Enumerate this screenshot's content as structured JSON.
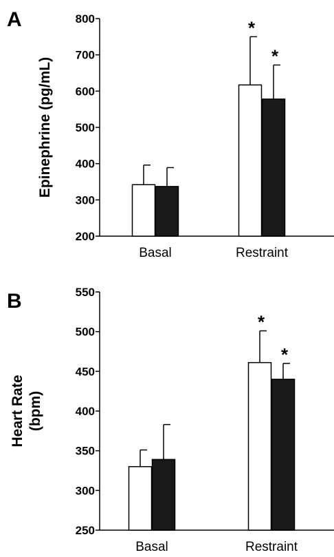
{
  "chart_data": [
    {
      "type": "bar",
      "panel": "A",
      "categories": [
        "Basal",
        "Restraint"
      ],
      "series": [
        {
          "values": [
            342,
            617
          ],
          "errors": [
            54,
            133
          ],
          "color": "#ffffff"
        },
        {
          "values": [
            337,
            578
          ],
          "errors": [
            52,
            94
          ],
          "color": "#1a1a1a"
        }
      ],
      "ylabel": "Epinephrine  (pg/mL)",
      "ylim": [
        200,
        800
      ],
      "yticks": [
        200,
        300,
        400,
        500,
        600,
        700,
        800
      ],
      "annotations": [
        {
          "category": "Restraint",
          "series": 0,
          "text": "*"
        },
        {
          "category": "Restraint",
          "series": 1,
          "text": "*"
        }
      ],
      "grid": false
    },
    {
      "type": "bar",
      "panel": "B",
      "categories": [
        "Basal",
        "Restraint"
      ],
      "series": [
        {
          "values": [
            330,
            461
          ],
          "errors": [
            21,
            40
          ],
          "color": "#ffffff"
        },
        {
          "values": [
            339,
            440
          ],
          "errors": [
            44,
            20
          ],
          "color": "#1a1a1a"
        }
      ],
      "ylabel": [
        "Heart Rate",
        "(bpm)"
      ],
      "ylim": [
        250,
        550
      ],
      "yticks": [
        250,
        300,
        350,
        400,
        450,
        500,
        550
      ],
      "annotations": [
        {
          "category": "Restraint",
          "series": 0,
          "text": "*"
        },
        {
          "category": "Restraint",
          "series": 1,
          "text": "*"
        }
      ],
      "grid": false
    }
  ]
}
